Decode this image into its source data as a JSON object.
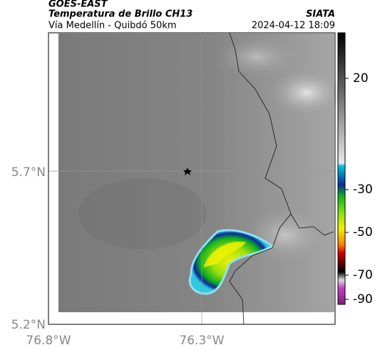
{
  "header": {
    "source": "GOES-EAST",
    "title": "Temperatura de Brillo CH13",
    "subtitle": "Vía Medellín - Quibdó 50km",
    "org": "SIATA",
    "timestamp": "2024-04-12 18:09"
  },
  "map": {
    "lat_labels": [
      "5.7°N",
      "5.2°N"
    ],
    "lon_labels": [
      "76.8°W",
      "76.3°W"
    ]
  },
  "colorbar": {
    "ticks": [
      20,
      -30,
      -50,
      -70,
      -90
    ]
  }
}
